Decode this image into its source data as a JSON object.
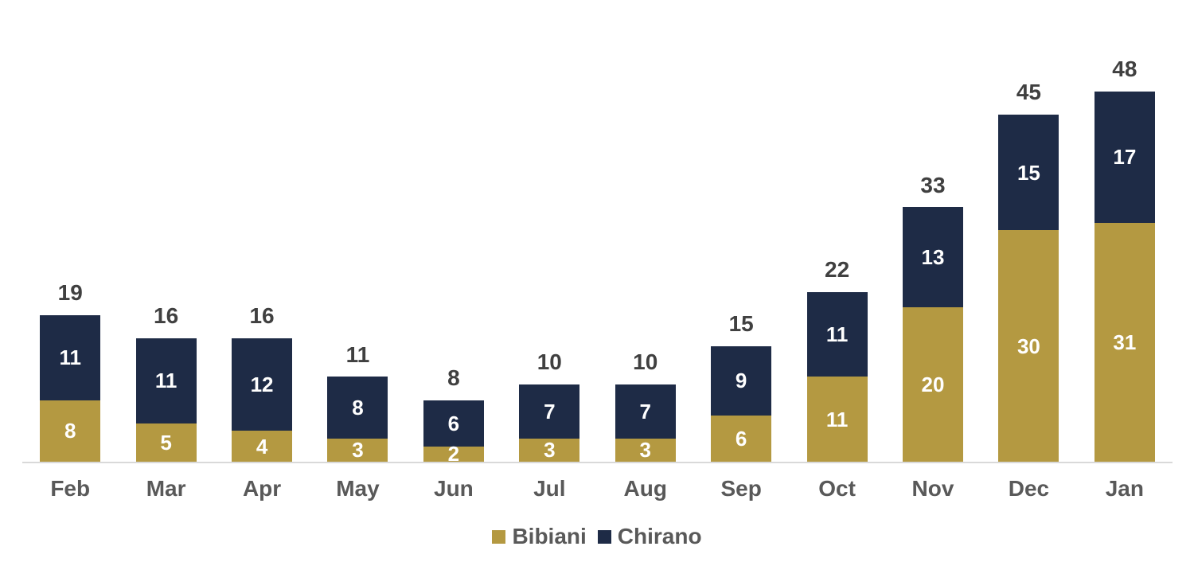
{
  "chart_data": {
    "type": "bar",
    "stacked": true,
    "categories": [
      "Feb",
      "Mar",
      "Apr",
      "May",
      "Jun",
      "Jul",
      "Aug",
      "Sep",
      "Oct",
      "Nov",
      "Dec",
      "Jan"
    ],
    "series": [
      {
        "name": "Bibiani",
        "color": "#B49941",
        "values": [
          8,
          5,
          4,
          3,
          2,
          3,
          3,
          6,
          11,
          20,
          30,
          31
        ]
      },
      {
        "name": "Chirano",
        "color": "#1E2B46",
        "values": [
          11,
          11,
          12,
          8,
          6,
          7,
          7,
          9,
          11,
          13,
          15,
          17
        ]
      }
    ],
    "totals": [
      19,
      16,
      16,
      11,
      8,
      10,
      10,
      15,
      22,
      33,
      45,
      48
    ],
    "title": "",
    "xlabel": "",
    "ylabel": "",
    "ylim": [
      0,
      48
    ],
    "grid": false,
    "legend_position": "bottom-center",
    "data_labels": "inside-center-white",
    "total_labels": "above-bars"
  },
  "colors": {
    "background": "#FFFFFF",
    "total_label": "#404040",
    "axis_label": "#595959",
    "legend_label": "#595959",
    "segment_label": "#FFFFFF",
    "axis_line": "#D9D9D9"
  }
}
